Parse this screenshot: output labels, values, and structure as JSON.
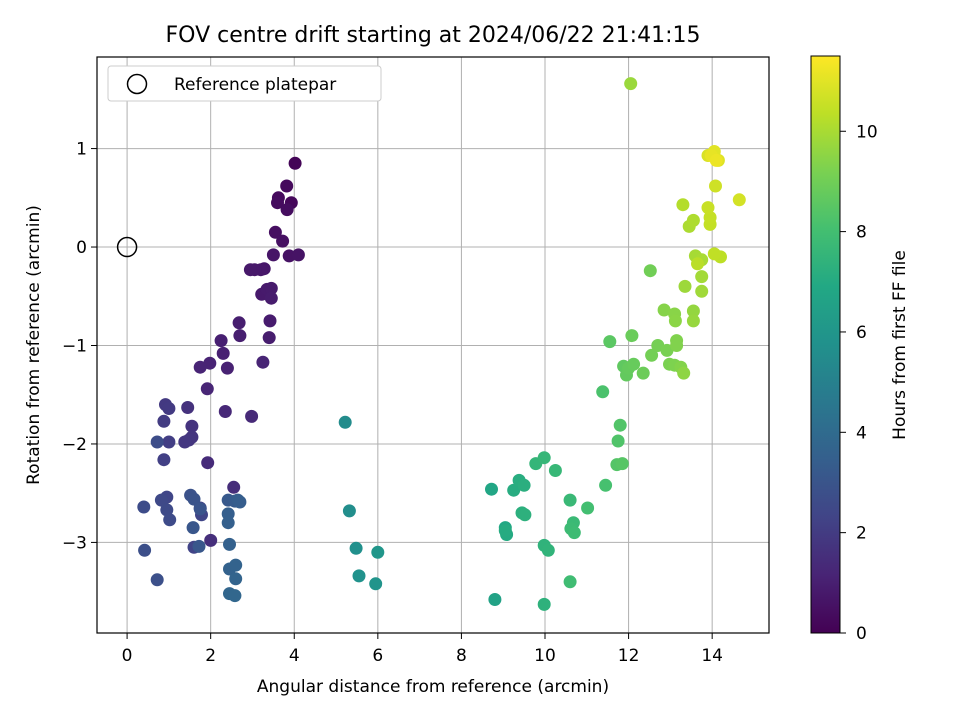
{
  "chart_data": {
    "type": "scatter",
    "title": "FOV centre drift starting at 2024/06/22 21:41:15",
    "xlabel": "Angular distance from reference (arcmin)",
    "ylabel": "Rotation from reference (arcmin)",
    "xlim": [
      -0.72,
      15.36
    ],
    "ylim": [
      -3.92,
      1.93
    ],
    "xticks": [
      0,
      2,
      4,
      6,
      8,
      10,
      12,
      14
    ],
    "yticks": [
      -3,
      -2,
      -1,
      0,
      1
    ],
    "grid": true,
    "legend": {
      "position": "top-left",
      "entries": [
        "Reference platepar"
      ]
    },
    "reference": {
      "label": "Reference platepar",
      "x": 0,
      "y": 0
    },
    "colorbar": {
      "label": "Hours from first FF file",
      "colormap": "viridis",
      "range": [
        0,
        11.5
      ],
      "ticks": [
        0,
        2,
        4,
        6,
        8,
        10
      ]
    },
    "points": [
      [
        4.02,
        0.85,
        0.12
      ],
      [
        3.93,
        0.45,
        0.2
      ],
      [
        3.82,
        0.62,
        0.28
      ],
      [
        3.62,
        0.5,
        0.3
      ],
      [
        3.6,
        0.45,
        0.35
      ],
      [
        3.83,
        0.38,
        0.4
      ],
      [
        3.55,
        0.15,
        0.45
      ],
      [
        3.72,
        0.06,
        0.5
      ],
      [
        3.88,
        -0.09,
        0.55
      ],
      [
        4.1,
        -0.08,
        0.6
      ],
      [
        3.5,
        -0.08,
        0.65
      ],
      [
        3.28,
        -0.22,
        0.7
      ],
      [
        3.2,
        -0.23,
        0.72
      ],
      [
        3.05,
        -0.23,
        0.75
      ],
      [
        2.95,
        -0.23,
        0.78
      ],
      [
        3.22,
        -0.48,
        0.8
      ],
      [
        3.35,
        -0.43,
        0.82
      ],
      [
        3.45,
        -0.42,
        0.85
      ],
      [
        3.45,
        -0.52,
        0.88
      ],
      [
        3.42,
        -0.75,
        0.9
      ],
      [
        3.4,
        -0.92,
        0.92
      ],
      [
        2.68,
        -0.77,
        0.95
      ],
      [
        2.7,
        -0.9,
        0.98
      ],
      [
        2.25,
        -0.95,
        1.0
      ],
      [
        2.3,
        -1.08,
        1.03
      ],
      [
        2.4,
        -1.23,
        1.08
      ],
      [
        1.98,
        -1.18,
        1.12
      ],
      [
        1.75,
        -1.22,
        1.15
      ],
      [
        3.25,
        -1.17,
        1.18
      ],
      [
        1.92,
        -1.44,
        1.22
      ],
      [
        2.35,
        -1.67,
        1.3
      ],
      [
        2.98,
        -1.72,
        1.35
      ],
      [
        1.93,
        -2.19,
        1.4
      ],
      [
        2.55,
        -2.44,
        1.5
      ],
      [
        2.0,
        -2.98,
        1.55
      ],
      [
        1.45,
        -1.63,
        1.65
      ],
      [
        1.55,
        -1.82,
        1.7
      ],
      [
        1.55,
        -1.93,
        1.75
      ],
      [
        1.48,
        -1.96,
        1.8
      ],
      [
        1.38,
        -1.98,
        1.85
      ],
      [
        0.92,
        -1.6,
        1.9
      ],
      [
        1.0,
        -1.64,
        1.95
      ],
      [
        0.88,
        -1.77,
        2.0
      ],
      [
        1.0,
        -1.98,
        2.1
      ],
      [
        0.88,
        -2.16,
        2.15
      ],
      [
        1.75,
        -2.65,
        2.2
      ],
      [
        1.6,
        -3.05,
        2.3
      ],
      [
        1.78,
        -2.72,
        2.35
      ],
      [
        0.95,
        -2.54,
        2.4
      ],
      [
        0.82,
        -2.57,
        2.5
      ],
      [
        0.95,
        -2.67,
        2.55
      ],
      [
        1.02,
        -2.77,
        2.6
      ],
      [
        0.4,
        -2.64,
        2.65
      ],
      [
        0.72,
        -1.98,
        2.7
      ],
      [
        0.42,
        -3.08,
        2.75
      ],
      [
        0.72,
        -3.38,
        2.8
      ],
      [
        1.52,
        -2.52,
        2.9
      ],
      [
        1.6,
        -2.56,
        2.95
      ],
      [
        1.75,
        -2.66,
        3.0
      ],
      [
        1.58,
        -2.85,
        3.05
      ],
      [
        1.72,
        -3.04,
        3.1
      ],
      [
        2.42,
        -2.57,
        3.2
      ],
      [
        2.58,
        -2.58,
        3.3
      ],
      [
        2.65,
        -2.57,
        3.35
      ],
      [
        2.7,
        -2.59,
        3.4
      ],
      [
        2.42,
        -2.71,
        3.45
      ],
      [
        2.42,
        -2.8,
        3.5
      ],
      [
        2.45,
        -3.02,
        3.55
      ],
      [
        2.45,
        -3.27,
        3.6
      ],
      [
        2.6,
        -3.23,
        3.65
      ],
      [
        2.6,
        -3.37,
        3.7
      ],
      [
        2.45,
        -3.52,
        3.75
      ],
      [
        2.58,
        -3.54,
        3.8
      ],
      [
        5.22,
        -1.78,
        5.5
      ],
      [
        5.32,
        -2.68,
        5.6
      ],
      [
        5.48,
        -3.06,
        5.7
      ],
      [
        5.55,
        -3.34,
        5.8
      ],
      [
        5.95,
        -3.42,
        5.9
      ],
      [
        6.0,
        -3.1,
        6.0
      ],
      [
        8.8,
        -3.58,
        6.6
      ],
      [
        8.72,
        -2.46,
        6.8
      ],
      [
        9.05,
        -2.85,
        6.9
      ],
      [
        9.08,
        -2.92,
        7.0
      ],
      [
        9.05,
        -2.88,
        7.05
      ],
      [
        9.25,
        -2.47,
        7.1
      ],
      [
        9.38,
        -2.37,
        7.15
      ],
      [
        9.5,
        -2.42,
        7.2
      ],
      [
        9.45,
        -2.7,
        7.25
      ],
      [
        9.52,
        -2.72,
        7.3
      ],
      [
        9.98,
        -3.63,
        7.35
      ],
      [
        9.98,
        -3.03,
        7.4
      ],
      [
        10.08,
        -3.08,
        7.45
      ],
      [
        9.78,
        -2.2,
        7.55
      ],
      [
        9.98,
        -2.14,
        7.6
      ],
      [
        10.25,
        -2.27,
        7.65
      ],
      [
        10.6,
        -2.57,
        7.7
      ],
      [
        10.68,
        -2.8,
        7.75
      ],
      [
        10.62,
        -2.86,
        7.8
      ],
      [
        10.7,
        -2.9,
        7.85
      ],
      [
        10.6,
        -3.4,
        7.9
      ],
      [
        11.02,
        -2.65,
        8.0
      ],
      [
        11.45,
        -2.42,
        8.1
      ],
      [
        11.38,
        -1.47,
        8.2
      ],
      [
        11.75,
        -1.97,
        8.3
      ],
      [
        11.8,
        -1.81,
        8.35
      ],
      [
        11.72,
        -2.21,
        8.4
      ],
      [
        11.85,
        -2.2,
        8.45
      ],
      [
        11.55,
        -0.96,
        8.55
      ],
      [
        11.88,
        -1.21,
        8.65
      ],
      [
        11.95,
        -1.3,
        8.7
      ],
      [
        12.0,
        -1.23,
        8.75
      ],
      [
        12.12,
        -1.19,
        8.8
      ],
      [
        12.08,
        -0.9,
        8.85
      ],
      [
        12.35,
        -1.28,
        8.9
      ],
      [
        12.52,
        -0.24,
        9.0
      ],
      [
        12.55,
        -1.1,
        9.05
      ],
      [
        12.7,
        -1.0,
        9.1
      ],
      [
        12.92,
        -1.05,
        9.15
      ],
      [
        12.98,
        -1.19,
        9.2
      ],
      [
        13.1,
        -1.2,
        9.25
      ],
      [
        13.15,
        -0.95,
        9.3
      ],
      [
        13.15,
        -1.0,
        9.32
      ],
      [
        13.25,
        -1.22,
        9.35
      ],
      [
        12.85,
        -0.64,
        9.4
      ],
      [
        13.1,
        -0.68,
        9.45
      ],
      [
        13.12,
        -0.75,
        9.5
      ],
      [
        13.32,
        -1.28,
        9.55
      ],
      [
        13.55,
        -0.65,
        9.65
      ],
      [
        13.55,
        -0.75,
        9.7
      ],
      [
        12.05,
        1.66,
        9.75
      ],
      [
        13.35,
        -0.4,
        9.8
      ],
      [
        13.75,
        -0.45,
        9.85
      ],
      [
        13.75,
        -0.3,
        9.9
      ],
      [
        13.6,
        -0.09,
        9.95
      ],
      [
        13.75,
        -0.13,
        10.0
      ],
      [
        13.45,
        0.21,
        10.05
      ],
      [
        13.55,
        0.27,
        10.1
      ],
      [
        13.3,
        0.43,
        10.2
      ],
      [
        13.65,
        -0.17,
        10.3
      ],
      [
        14.2,
        -0.1,
        10.35
      ],
      [
        14.05,
        -0.07,
        10.4
      ],
      [
        13.95,
        0.23,
        10.45
      ],
      [
        13.95,
        0.3,
        10.5
      ],
      [
        13.9,
        0.4,
        10.55
      ],
      [
        14.08,
        0.62,
        10.65
      ],
      [
        14.65,
        0.48,
        10.75
      ],
      [
        13.9,
        0.93,
        10.85
      ],
      [
        14.15,
        0.88,
        10.95
      ],
      [
        14.05,
        0.97,
        11.0
      ],
      [
        13.98,
        0.93,
        11.1
      ],
      [
        14.1,
        0.88,
        11.2
      ]
    ]
  }
}
